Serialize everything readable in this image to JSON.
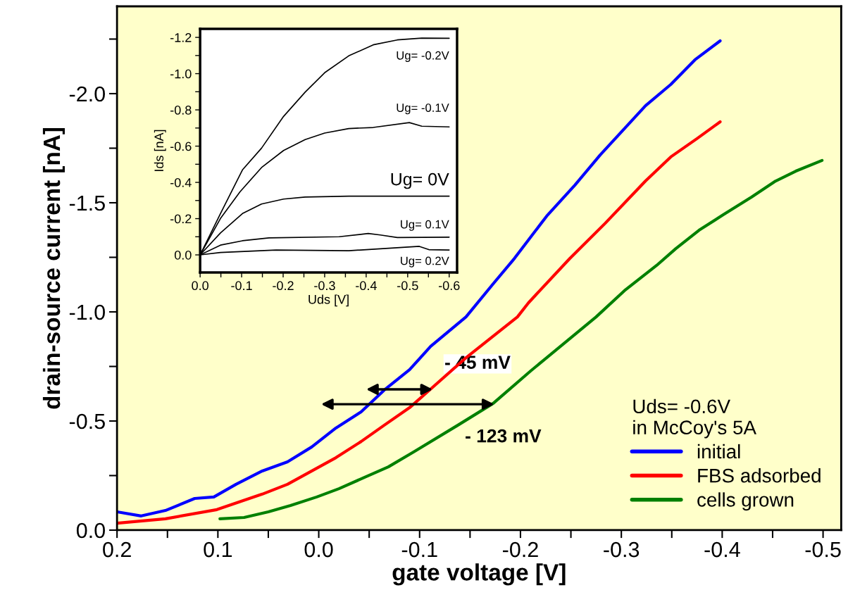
{
  "chart_data": [
    {
      "type": "line",
      "xlabel": "gate voltage [V]",
      "ylabel": "drain-source current [nA]",
      "legend_title": "Uds= -0.6V\nin McCoy's 5A",
      "legend": "bottom right",
      "grid": false,
      "xlim": [
        0.2,
        -0.518
      ],
      "ylim": [
        0.0,
        -2.4
      ],
      "xticks": [
        0.2,
        {
          "value": 0.15,
          "label": null
        },
        0.1,
        {
          "value": 0.05,
          "label": null
        },
        {
          "value": 0,
          "label": "0.0"
        },
        {
          "value": -0.05,
          "label": null
        },
        -0.1,
        {
          "value": -0.15,
          "label": null
        },
        -0.2,
        {
          "value": -0.25,
          "label": null
        },
        -0.3,
        {
          "value": -0.35,
          "label": null
        },
        -0.4,
        {
          "value": -0.45,
          "label": null
        },
        -0.5
      ],
      "yticks": [
        {
          "value": 0,
          "label": "0.0"
        },
        {
          "value": -0.25,
          "label": null
        },
        -0.5,
        {
          "value": -0.75,
          "label": null
        },
        {
          "value": -1,
          "label": "-1.0"
        },
        {
          "value": -1.25,
          "label": null
        },
        -1.5,
        {
          "value": -1.75,
          "label": null
        },
        {
          "value": -2,
          "label": "-2.0"
        },
        {
          "value": -2.25,
          "label": null
        }
      ],
      "annotations": [
        {
          "text": "- 45 mV",
          "x": -0.113,
          "y": -0.645
        },
        {
          "text": "- 123 mV",
          "x": -0.174,
          "y": -0.577
        }
      ],
      "series": [
        {
          "name": "initial",
          "color": "#0000ff",
          "x": [
            0.2,
            0.176,
            0.152,
            0.123,
            0.104,
            0.082,
            0.056,
            0.031,
            0.007,
            -0.017,
            -0.042,
            -0.065,
            -0.09,
            -0.111,
            -0.146,
            -0.173,
            -0.194,
            -0.226,
            -0.254,
            -0.279,
            -0.324,
            -0.349,
            -0.373,
            -0.398
          ],
          "values": [
            -0.084,
            -0.065,
            -0.09,
            -0.145,
            -0.152,
            -0.21,
            -0.271,
            -0.313,
            -0.381,
            -0.468,
            -0.542,
            -0.642,
            -0.735,
            -0.842,
            -0.977,
            -1.129,
            -1.245,
            -1.439,
            -1.581,
            -1.719,
            -1.945,
            -2.042,
            -2.155,
            -2.242
          ]
        },
        {
          "name": "FBS adsorbed",
          "color": "#ff0000",
          "x": [
            0.2,
            0.152,
            0.101,
            0.056,
            0.031,
            -0.017,
            -0.042,
            -0.065,
            -0.09,
            -0.113,
            -0.146,
            -0.197,
            -0.208,
            -0.249,
            -0.284,
            -0.324,
            -0.349,
            -0.375,
            -0.398
          ],
          "values": [
            -0.032,
            -0.052,
            -0.094,
            -0.165,
            -0.21,
            -0.332,
            -0.406,
            -0.481,
            -0.561,
            -0.655,
            -0.79,
            -0.977,
            -1.042,
            -1.245,
            -1.406,
            -1.6,
            -1.71,
            -1.794,
            -1.871
          ]
        },
        {
          "name": "cells grown",
          "color": "#008000",
          "x": [
            0.098,
            0.074,
            0.05,
            0.028,
            0.002,
            -0.02,
            -0.044,
            -0.069,
            -0.094,
            -0.138,
            -0.173,
            -0.21,
            -0.275,
            -0.303,
            -0.335,
            -0.354,
            -0.377,
            -0.401,
            -0.429,
            -0.452,
            -0.473,
            -0.499
          ],
          "values": [
            -0.052,
            -0.058,
            -0.084,
            -0.113,
            -0.152,
            -0.19,
            -0.239,
            -0.29,
            -0.358,
            -0.481,
            -0.581,
            -0.729,
            -0.977,
            -1.097,
            -1.213,
            -1.29,
            -1.374,
            -1.445,
            -1.526,
            -1.597,
            -1.645,
            -1.694
          ]
        }
      ]
    },
    {
      "type": "line",
      "xlabel": "Uds [V]",
      "ylabel": "Ids [nA]",
      "grid": false,
      "legend": false,
      "xlim": [
        0.0,
        -0.619
      ],
      "ylim": [
        0.097,
        -1.247
      ],
      "xticks": [
        {
          "value": 0,
          "label": "0.0"
        },
        {
          "value": -0.05,
          "label": null
        },
        -0.1,
        {
          "value": -0.15,
          "label": null
        },
        -0.2,
        {
          "value": -0.25,
          "label": null
        },
        -0.3,
        {
          "value": -0.35,
          "label": null
        },
        -0.4,
        {
          "value": -0.45,
          "label": null
        },
        -0.5,
        {
          "value": -0.55,
          "label": null
        },
        -0.6
      ],
      "yticks": [
        {
          "value": 0,
          "label": "0.0"
        },
        {
          "value": -0.1,
          "label": null
        },
        -0.2,
        {
          "value": -0.3,
          "label": null
        },
        -0.4,
        {
          "value": -0.5,
          "label": null
        },
        -0.6,
        {
          "value": -0.7,
          "label": null
        },
        -0.8,
        {
          "value": -0.9,
          "label": null
        },
        {
          "value": -1,
          "label": "-1.0"
        },
        {
          "value": -1.1,
          "label": null
        },
        -1.2
      ],
      "series": [
        {
          "name": "Ug= -0.2V",
          "color": "#000000",
          "x": [
            0.0,
            -0.049,
            -0.102,
            -0.148,
            -0.201,
            -0.253,
            -0.3,
            -0.358,
            -0.417,
            -0.475,
            -0.534,
            -0.6
          ],
          "values": [
            0.0,
            -0.228,
            -0.469,
            -0.589,
            -0.764,
            -0.898,
            -1.005,
            -1.098,
            -1.159,
            -1.186,
            -1.196,
            -1.195
          ]
        },
        {
          "name": "Ug= -0.1V",
          "color": "#000000",
          "x": [
            0.0,
            -0.049,
            -0.096,
            -0.148,
            -0.201,
            -0.253,
            -0.3,
            -0.358,
            -0.417,
            -0.504,
            -0.534,
            -0.6
          ],
          "values": [
            0.0,
            -0.201,
            -0.348,
            -0.482,
            -0.576,
            -0.636,
            -0.672,
            -0.697,
            -0.703,
            -0.73,
            -0.71,
            -0.706
          ]
        },
        {
          "name": "Ug= 0V",
          "color": "#000000",
          "x": [
            0.0,
            -0.049,
            -0.102,
            -0.148,
            -0.201,
            -0.253,
            -0.358,
            -0.6
          ],
          "values": [
            0.0,
            -0.121,
            -0.228,
            -0.281,
            -0.308,
            -0.319,
            -0.324,
            -0.324
          ]
        },
        {
          "name": "Ug= 0.1V",
          "color": "#000000",
          "x": [
            0.0,
            -0.049,
            -0.102,
            -0.166,
            -0.335,
            -0.405,
            -0.434,
            -0.475,
            -0.6
          ],
          "values": [
            0.0,
            -0.054,
            -0.078,
            -0.094,
            -0.1,
            -0.118,
            -0.11,
            -0.096,
            -0.098
          ]
        },
        {
          "name": "Ug= 0.2V",
          "color": "#000000",
          "x": [
            0.0,
            -0.049,
            -0.183,
            -0.358,
            -0.528,
            -0.551,
            -0.6
          ],
          "values": [
            0.0,
            -0.013,
            -0.027,
            -0.023,
            -0.047,
            -0.029,
            -0.027
          ]
        }
      ]
    }
  ]
}
